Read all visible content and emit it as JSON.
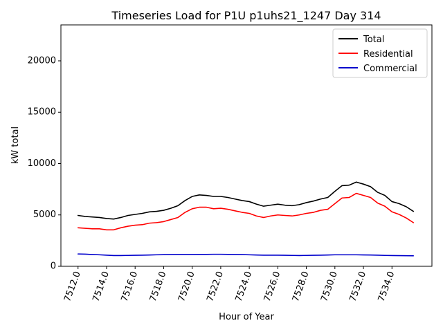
{
  "chart_data": {
    "type": "line",
    "title": "Timeseries Load for P1U p1uhs21_1247  Day 314",
    "xlabel": "Hour of Year",
    "ylabel": "kW total",
    "xlim": [
      7510.8,
      7536.8
    ],
    "ylim": [
      0,
      23500
    ],
    "xticks": [
      7512,
      7514,
      7516,
      7518,
      7520,
      7522,
      7524,
      7526,
      7528,
      7530,
      7532,
      7534
    ],
    "xtick_labels": [
      "7512.0",
      "7514.0",
      "7516.0",
      "7518.0",
      "7520.0",
      "7522.0",
      "7524.0",
      "7526.0",
      "7528.0",
      "7530.0",
      "7532.0",
      "7534.0"
    ],
    "yticks": [
      0,
      5000,
      10000,
      15000,
      20000
    ],
    "ytick_labels": [
      "0",
      "5000",
      "10000",
      "15000",
      "20000"
    ],
    "legend_position": "top-right",
    "x": [
      7512.0,
      7512.5,
      7513.0,
      7513.5,
      7514.0,
      7514.5,
      7515.0,
      7515.5,
      7516.0,
      7516.5,
      7517.0,
      7517.5,
      7518.0,
      7518.5,
      7519.0,
      7519.5,
      7520.0,
      7520.5,
      7521.0,
      7521.5,
      7522.0,
      7522.5,
      7523.0,
      7523.5,
      7524.0,
      7524.5,
      7525.0,
      7525.5,
      7526.0,
      7526.5,
      7527.0,
      7527.5,
      7528.0,
      7528.5,
      7529.0,
      7529.5,
      7530.0,
      7530.5,
      7531.0,
      7531.5,
      7532.0,
      7532.5,
      7533.0,
      7533.5,
      7534.0,
      7534.5,
      7535.0,
      7535.5
    ],
    "series": [
      {
        "name": "Total",
        "color": "#000000",
        "values": [
          4950,
          4850,
          4800,
          4750,
          4650,
          4600,
          4750,
          4950,
          5050,
          5150,
          5300,
          5350,
          5450,
          5650,
          5900,
          6400,
          6800,
          6950,
          6900,
          6800,
          6800,
          6700,
          6550,
          6400,
          6300,
          6050,
          5850,
          5950,
          6050,
          5950,
          5900,
          6000,
          6200,
          6350,
          6550,
          6700,
          7300,
          7850,
          7900,
          8200,
          8000,
          7750,
          7200,
          6900,
          6300,
          6100,
          5800,
          5350
        ]
      },
      {
        "name": "Residential",
        "color": "#ff0000",
        "values": [
          3750,
          3700,
          3650,
          3650,
          3550,
          3550,
          3750,
          3900,
          4000,
          4050,
          4200,
          4250,
          4350,
          4550,
          4750,
          5250,
          5600,
          5750,
          5750,
          5600,
          5650,
          5550,
          5400,
          5250,
          5150,
          4900,
          4750,
          4900,
          5000,
          4950,
          4900,
          5000,
          5150,
          5250,
          5450,
          5550,
          6100,
          6650,
          6700,
          7100,
          6900,
          6700,
          6150,
          5850,
          5300,
          5050,
          4700,
          4250
        ]
      },
      {
        "name": "Commercial",
        "color": "#0000cc",
        "values": [
          1200,
          1180,
          1150,
          1120,
          1080,
          1050,
          1050,
          1060,
          1070,
          1080,
          1100,
          1120,
          1130,
          1140,
          1150,
          1150,
          1150,
          1160,
          1160,
          1170,
          1170,
          1160,
          1150,
          1140,
          1120,
          1100,
          1080,
          1080,
          1080,
          1070,
          1060,
          1050,
          1060,
          1070,
          1080,
          1100,
          1120,
          1120,
          1120,
          1120,
          1110,
          1100,
          1080,
          1060,
          1050,
          1040,
          1030,
          1020
        ]
      }
    ]
  }
}
